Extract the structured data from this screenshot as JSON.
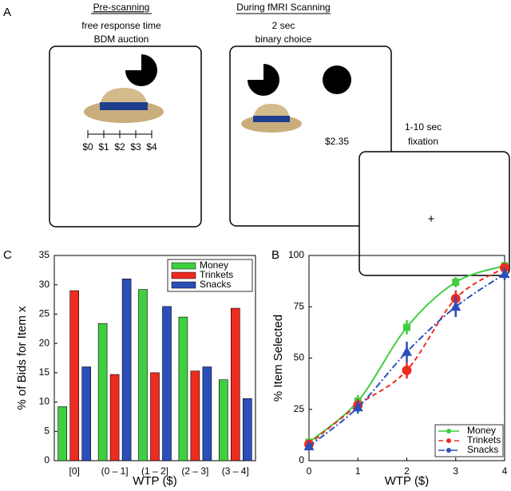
{
  "diagram": {
    "panel_a": "A",
    "pre_title": "Pre-scanning",
    "pre_line1": "free response time",
    "pre_line2": "BDM auction",
    "scale_labels": [
      "$0",
      "$1",
      "$2",
      "$3",
      "$4"
    ],
    "scan_title": "During fMRI Scanning",
    "scan_line1": "2 sec",
    "scan_line2": "binary choice",
    "price": "$2.35",
    "fix_line1": "1-10 sec",
    "fix_line2": "fixation",
    "fix_cross": "+"
  },
  "chart_data": [
    {
      "type": "bar",
      "panel": "C",
      "categories": [
        "[0]",
        "(0 – 1]",
        "(1 – 2]",
        "(2 – 3]",
        "(3 – 4]"
      ],
      "series": [
        {
          "name": "Money",
          "color": "#3fcf3f",
          "values": [
            9.2,
            23.4,
            29.2,
            24.5,
            13.8
          ]
        },
        {
          "name": "Trinkets",
          "color": "#ee2b1f",
          "values": [
            29,
            14.7,
            15,
            15.3,
            26
          ]
        },
        {
          "name": "Snacks",
          "color": "#2b4fb8",
          "values": [
            16,
            31,
            26.3,
            16,
            10.6
          ]
        }
      ],
      "ylim": [
        0,
        35
      ],
      "yticks": [
        0,
        5,
        10,
        15,
        20,
        25,
        30,
        35
      ],
      "x_label": "WTP ($)",
      "y_label": "% of Bids for Item x",
      "legend": "top-right"
    },
    {
      "type": "line",
      "panel": "B",
      "x": [
        0,
        1,
        2,
        3,
        4
      ],
      "series": [
        {
          "name": "Money",
          "color": "#3fcf3f",
          "dash": "none",
          "marker": "square",
          "values": [
            9,
            29,
            65,
            87,
            95
          ],
          "errors": [
            1.5,
            3,
            3.5,
            2.5,
            2
          ]
        },
        {
          "name": "Trinkets",
          "color": "#ee2b1f",
          "dash": "6,4",
          "marker": "circle",
          "values": [
            8,
            27,
            44,
            79,
            94
          ],
          "errors": [
            2,
            3,
            4,
            4,
            2.5
          ]
        },
        {
          "name": "Snacks",
          "color": "#2b4fb8",
          "dash": "8,3,2,3",
          "marker": "triangle",
          "values": [
            7,
            26,
            53,
            75,
            91
          ],
          "errors": [
            2,
            3,
            5,
            5,
            3
          ]
        }
      ],
      "xlim": [
        0,
        4
      ],
      "xticks": [
        0,
        1,
        2,
        3,
        4
      ],
      "ylim": [
        0,
        100
      ],
      "yticks": [
        0,
        25,
        50,
        75,
        100
      ],
      "x_label": "WTP ($)",
      "y_label": "% Item Selected",
      "legend": "bottom-right"
    }
  ]
}
